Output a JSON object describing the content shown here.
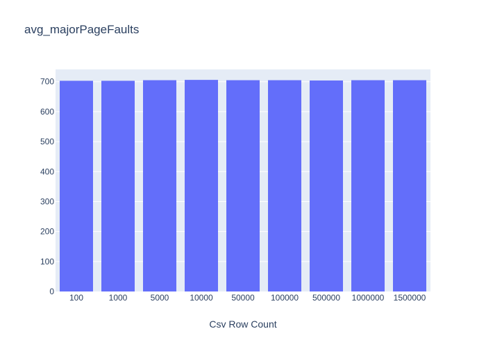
{
  "chart_data": {
    "type": "bar",
    "title": "avg_majorPageFaults",
    "xlabel": "Csv Row Count",
    "ylabel": "",
    "categories": [
      "100",
      "1000",
      "5000",
      "10000",
      "50000",
      "100000",
      "500000",
      "1000000",
      "1500000"
    ],
    "values": [
      703,
      703,
      705,
      706,
      705,
      705,
      704,
      705,
      705
    ],
    "ylim": [
      0,
      741
    ],
    "yticks": [
      0,
      100,
      200,
      300,
      400,
      500,
      600,
      700
    ],
    "grid": true,
    "colors": {
      "bar": "#636efa",
      "plot_bg": "#e5ecf6",
      "grid": "#ffffff",
      "text": "#2a3f5f"
    }
  }
}
